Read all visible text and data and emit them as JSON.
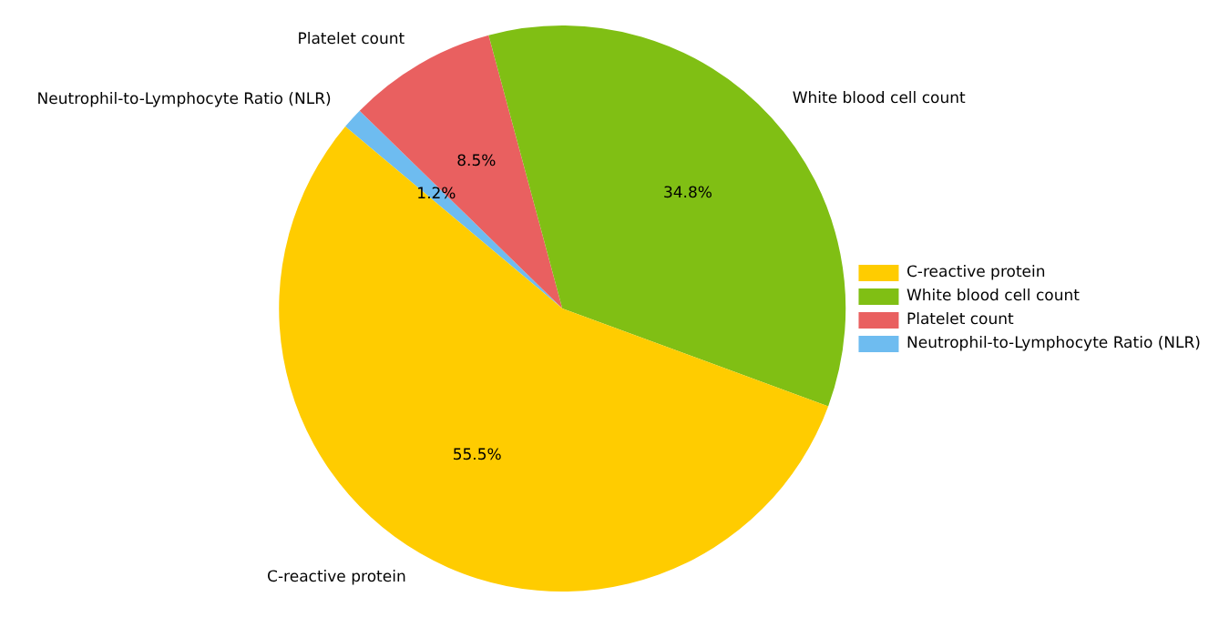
{
  "chart_data": {
    "type": "pie",
    "categories": [
      "C-reactive protein",
      "White blood cell count",
      "Platelet count",
      "Neutrophil-to-Lymphocyte Ratio (NLR)"
    ],
    "values": [
      55.5,
      34.8,
      8.5,
      1.2
    ],
    "colors": [
      "#ffcc00",
      "#80bf14",
      "#e96060",
      "#6ebcf0"
    ],
    "value_labels": [
      "55.5%",
      "34.8%",
      "8.5%",
      "1.2%"
    ],
    "legend": "right"
  }
}
